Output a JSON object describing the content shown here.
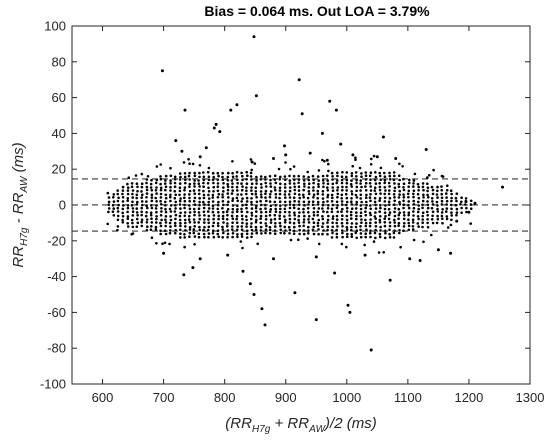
{
  "chart_data": {
    "type": "scatter",
    "title": "Bias = 0.064 ms. Out LOA = 3.79%",
    "xlabel": {
      "prefix": "(RR",
      "sub1": "H7g",
      "mid": " + RR",
      "sub2": "AW",
      "suffix": ")/2 (ms)"
    },
    "ylabel": {
      "prefix": "RR",
      "sub1": "H7g",
      "mid": " - RR",
      "sub2": "AW",
      "suffix": " (ms)"
    },
    "xlim": [
      550,
      1300
    ],
    "ylim": [
      -100,
      100
    ],
    "xticks": [
      600,
      700,
      800,
      900,
      1000,
      1100,
      1200,
      1300
    ],
    "yticks": [
      -100,
      -80,
      -60,
      -40,
      -20,
      0,
      20,
      40,
      60,
      80,
      100
    ],
    "grid": false,
    "reference_lines": [
      {
        "name": "upper LOA",
        "y": 14.6,
        "style": "dashed"
      },
      {
        "name": "bias",
        "y": 0.064,
        "style": "dashed"
      },
      {
        "name": "lower LOA",
        "y": -14.6,
        "style": "dashed"
      }
    ],
    "dense_band": {
      "x_start": 610,
      "x_end": 1205,
      "x_step": 7.8,
      "y_step": 2
    },
    "outliers": [
      [
        698,
        75
      ],
      [
        735,
        53
      ],
      [
        848,
        94
      ],
      [
        852,
        61
      ],
      [
        922,
        70
      ],
      [
        927,
        51
      ],
      [
        972,
        58
      ],
      [
        983,
        53
      ],
      [
        810,
        53
      ],
      [
        820,
        56
      ],
      [
        783,
        43
      ],
      [
        786,
        45
      ],
      [
        792,
        41
      ],
      [
        720,
        36
      ],
      [
        770,
        32
      ],
      [
        960,
        40
      ],
      [
        898,
        33
      ],
      [
        990,
        34
      ],
      [
        1060,
        38
      ],
      [
        1130,
        31
      ],
      [
        730,
        30
      ],
      [
        760,
        27
      ],
      [
        880,
        26
      ],
      [
        940,
        29
      ],
      [
        1010,
        28
      ],
      [
        1050,
        27
      ],
      [
        1080,
        26
      ],
      [
        900,
        28
      ],
      [
        968,
        25
      ],
      [
        845,
        24
      ],
      [
        733,
        -39
      ],
      [
        748,
        -35
      ],
      [
        760,
        -30
      ],
      [
        830,
        -37
      ],
      [
        842,
        -44
      ],
      [
        848,
        -50
      ],
      [
        861,
        -58
      ],
      [
        866,
        -67
      ],
      [
        915,
        -49
      ],
      [
        950,
        -64
      ],
      [
        980,
        -38
      ],
      [
        1002,
        -56
      ],
      [
        1005,
        -60
      ],
      [
        1040,
        -81
      ],
      [
        1071,
        -42
      ],
      [
        1120,
        -31
      ],
      [
        1170,
        -27
      ],
      [
        1103,
        -30
      ],
      [
        950,
        -29
      ],
      [
        880,
        -30
      ],
      [
        805,
        -28
      ],
      [
        700,
        -27
      ],
      [
        1030,
        -28
      ],
      [
        1150,
        -25
      ],
      [
        1255,
        10
      ],
      [
        1200,
        -4
      ],
      [
        1195,
        2
      ],
      [
        1210,
        1
      ],
      [
        1180,
        -9
      ]
    ]
  }
}
